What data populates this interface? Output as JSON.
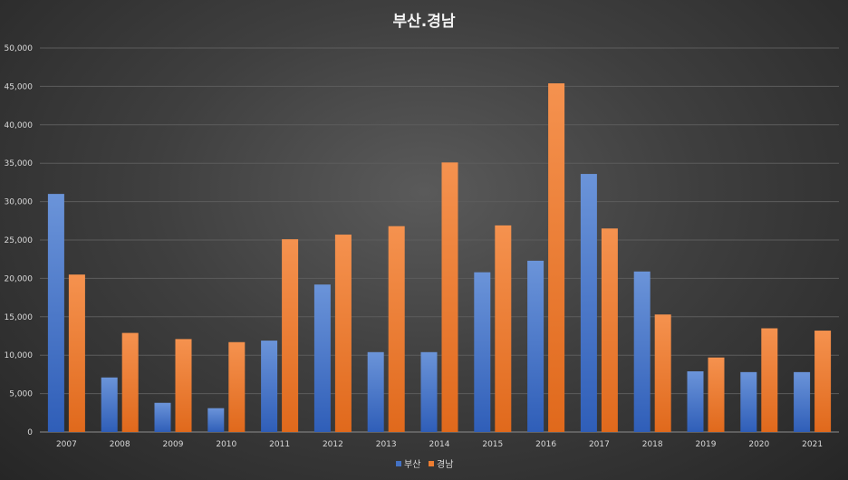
{
  "chart_data": {
    "type": "bar",
    "title": "부산.경남",
    "categories": [
      "2007",
      "2008",
      "2009",
      "2010",
      "2011",
      "2012",
      "2013",
      "2014",
      "2015",
      "2016",
      "2017",
      "2018",
      "2019",
      "2020",
      "2021"
    ],
    "series": [
      {
        "name": "부산",
        "color": "#4472c4",
        "values": [
          31000,
          7100,
          3800,
          3100,
          11900,
          19200,
          10400,
          10400,
          20800,
          22300,
          33600,
          20900,
          7900,
          7800,
          7800
        ]
      },
      {
        "name": "경남",
        "color": "#ed7d31",
        "values": [
          20500,
          12900,
          12100,
          11700,
          25100,
          25700,
          26800,
          35100,
          26900,
          45400,
          26500,
          15300,
          9700,
          13500,
          13200
        ]
      }
    ],
    "ylim": [
      0,
      50000
    ],
    "yticks": [
      0,
      5000,
      10000,
      15000,
      20000,
      25000,
      30000,
      35000,
      40000,
      45000,
      50000
    ],
    "ytick_labels": [
      "0",
      "5,000",
      "10,000",
      "15,000",
      "20,000",
      "25,000",
      "30,000",
      "35,000",
      "40,000",
      "45,000",
      "50,000"
    ],
    "grid": true,
    "legend_position": "bottom"
  }
}
